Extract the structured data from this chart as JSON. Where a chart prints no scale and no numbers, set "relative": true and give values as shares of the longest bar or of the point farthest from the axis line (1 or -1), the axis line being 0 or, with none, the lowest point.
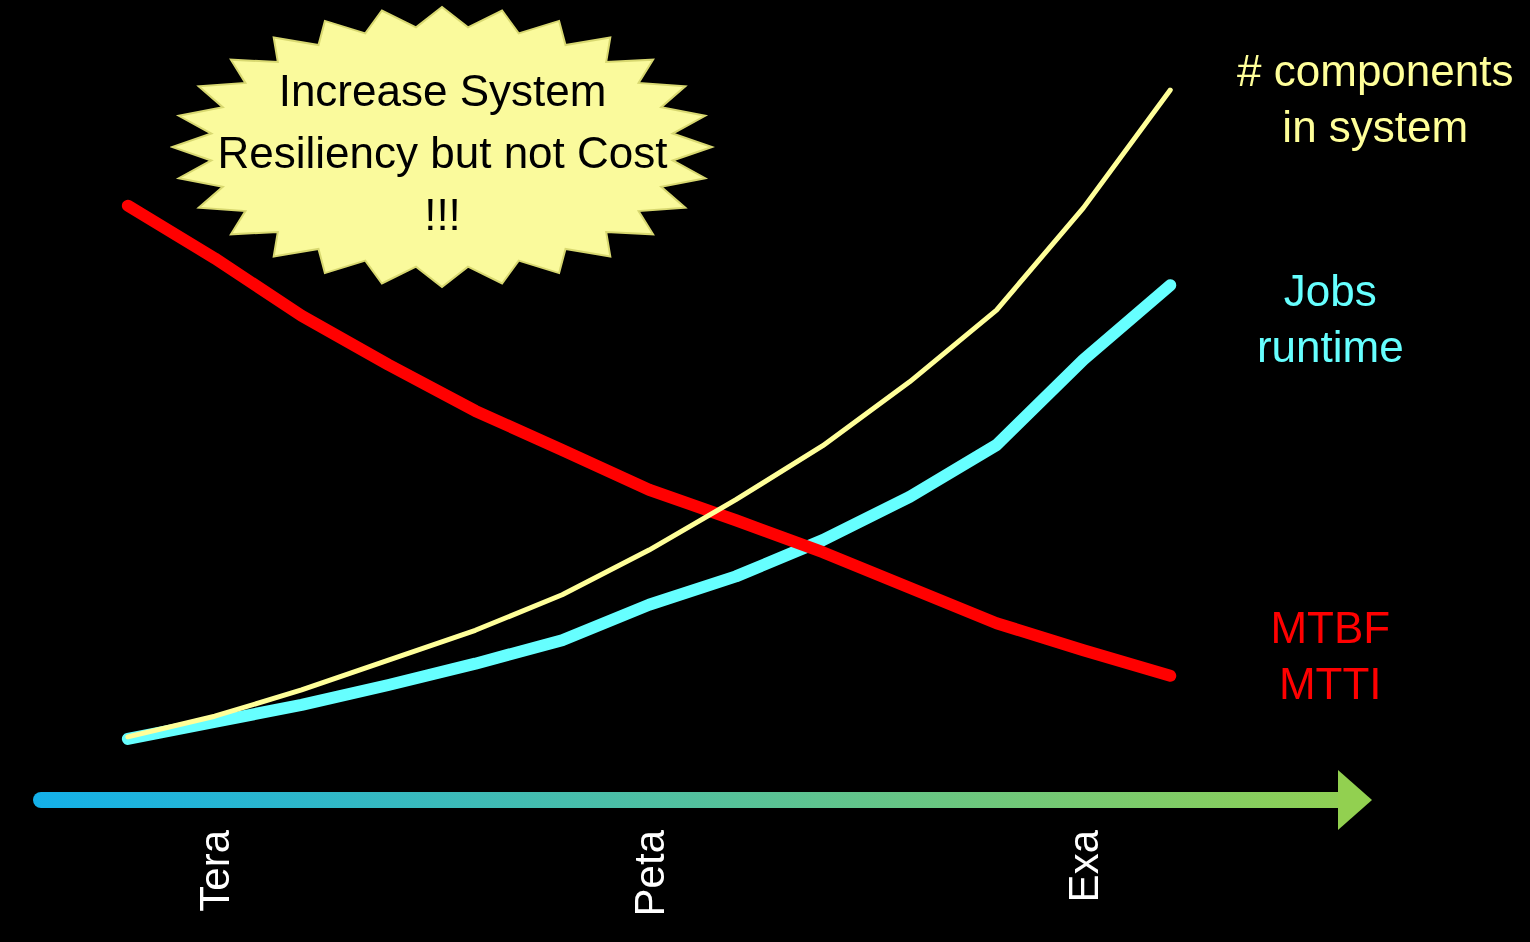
{
  "chart_data": {
    "type": "line",
    "relative": true,
    "marker": "none",
    "line_style": "solid",
    "grid": false,
    "legend": false,
    "categories": [
      null,
      null,
      "Tera",
      null,
      null,
      null,
      null,
      "Peta",
      null,
      null,
      null,
      null,
      "Exa",
      null,
      null,
      null
    ],
    "annotations": [
      "Increase System Resiliency but not Cost !!!"
    ],
    "series": [
      {
        "name": "# components\nin system",
        "color": "#ffff99",
        "values": [
          null,
          0.089,
          0.118,
          0.155,
          0.197,
          0.239,
          0.289,
          0.352,
          0.423,
          0.499,
          0.589,
          0.69,
          0.834,
          1,
          null,
          null
        ]
      },
      {
        "name": "Jobs\nruntime",
        "color": "#66ffff",
        "values": [
          null,
          0.086,
          0.11,
          0.134,
          0.162,
          0.192,
          0.225,
          0.275,
          0.315,
          0.366,
          0.427,
          0.5,
          0.62,
          0.725,
          null,
          null
        ]
      },
      {
        "name": "MTBF\nMTTI",
        "color": "#ff0000",
        "values": [
          null,
          0.837,
          0.763,
          0.682,
          0.613,
          0.548,
          0.493,
          0.437,
          0.394,
          0.349,
          0.299,
          0.249,
          0.211,
          0.175,
          null,
          null
        ]
      }
    ]
  }
}
